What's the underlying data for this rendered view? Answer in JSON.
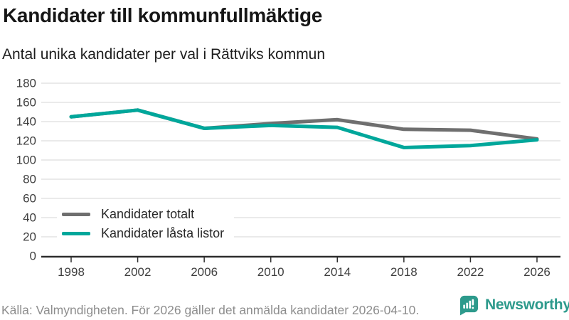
{
  "header": {
    "title": "Kandidater till kommunfullmäktige",
    "subtitle": "Antal unika kandidater per val i Rättviks kommun"
  },
  "chart_data": {
    "type": "line",
    "categories": [
      "1998",
      "2002",
      "2006",
      "2010",
      "2014",
      "2018",
      "2022",
      "2026"
    ],
    "series": [
      {
        "name": "Kandidater totalt",
        "color": "#6f6f6f",
        "values": [
          145,
          152,
          133,
          138,
          142,
          132,
          131,
          122
        ]
      },
      {
        "name": "Kandidater låsta listor",
        "color": "#00a79b",
        "values": [
          145,
          152,
          133,
          136,
          134,
          113,
          115,
          121
        ]
      }
    ],
    "title": "Kandidater till kommunfullmäktige",
    "subtitle": "Antal unika kandidater per val i Rättviks kommun",
    "xlabel": "",
    "ylabel": "",
    "ylim": [
      0,
      180
    ],
    "yticks": [
      0,
      20,
      40,
      60,
      80,
      100,
      120,
      140,
      160,
      180
    ],
    "grid": "horizontal",
    "legend_position": "inside-bottom-left"
  },
  "styles": {
    "grid_color": "#dedede",
    "axis_color": "#2d2d2d",
    "tick_label_color": "#3f3f3f",
    "line_width": 5
  },
  "footer": {
    "source": "Källa: Valmyndigheten. För 2026 gäller det anmälda kandidater 2026-04-10.",
    "brand": "Newsworthy"
  }
}
